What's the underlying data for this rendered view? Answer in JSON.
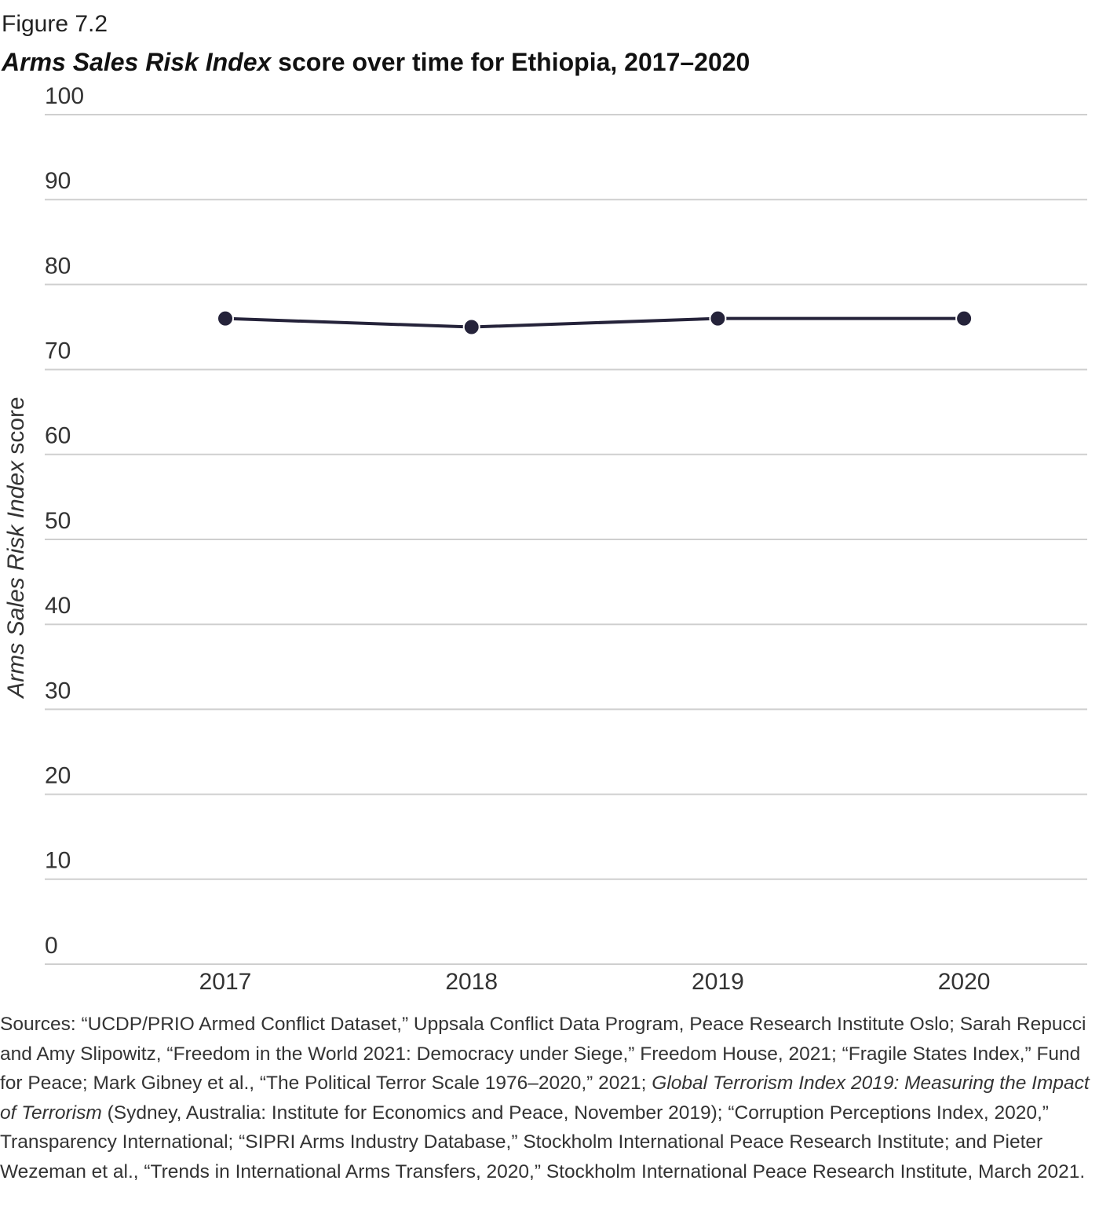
{
  "figure_label": "Figure 7.2",
  "chart_data": {
    "type": "line",
    "title": [
      {
        "text": "Arms Sales Risk Index",
        "italic": true
      },
      {
        "text": " score over time for Ethiopia, 2017–2020"
      }
    ],
    "y_label": [
      {
        "text": "Arms Sales Risk Index",
        "italic": true
      },
      {
        "text": " score"
      }
    ],
    "categories": [
      "2017",
      "2018",
      "2019",
      "2020"
    ],
    "values": [
      76,
      75,
      76,
      76
    ],
    "color": "#25233a",
    "ylim": [
      0,
      100
    ],
    "yticks": [
      0,
      10,
      20,
      30,
      40,
      50,
      60,
      70,
      80,
      90,
      100
    ],
    "grid": true
  },
  "sources": [
    {
      "text": "Sources: “UCDP/PRIO Armed Conflict Dataset,” Uppsala Conflict Data Program, Peace Research Institute Oslo; Sarah Repucci and Amy Slipowitz, “Freedom in the World 2021: Democracy under Siege,” Freedom House, 2021; “Fragile States Index,” Fund for Peace; Mark Gibney et al., “The Political Terror Scale 1976–2020,” 2021; "
    },
    {
      "text": "Global Terrorism Index 2019: Measuring the Impact of Terrorism",
      "italic": true
    },
    {
      "text": " (Sydney, Australia: Institute for Economics and Peace, November 2019); “Corruption Perceptions Index, 2020,” Transparency International; “SIPRI Arms Industry Database,” Stockholm International Peace Research Institute; and Pieter Wezeman et al., “Trends in International Arms Transfers, 2020,” Stockholm International Peace Research Institute, March 2021."
    }
  ]
}
